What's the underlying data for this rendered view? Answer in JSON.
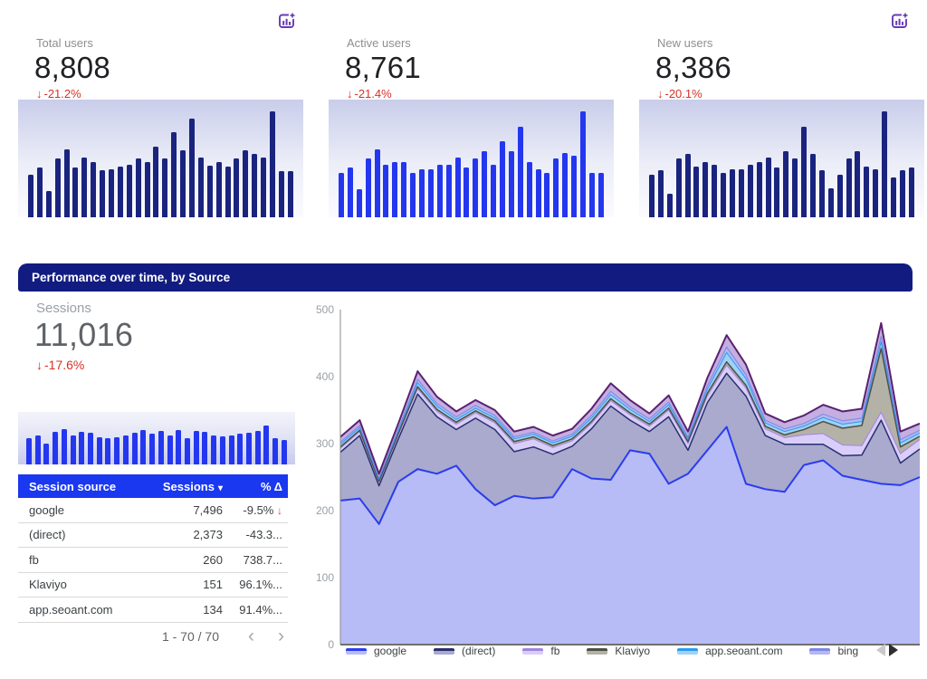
{
  "kpi_cards": [
    {
      "label": "Total users",
      "value": "8,808",
      "delta_arrow": "↓",
      "delta": "-21.2%",
      "spark_id": "total-users-spark"
    },
    {
      "label": "Active users",
      "value": "8,761",
      "delta_arrow": "↓",
      "delta": "-21.4%",
      "spark_id": "active-users-spark"
    },
    {
      "label": "New users",
      "value": "8,386",
      "delta_arrow": "↓",
      "delta": "-20.1%",
      "spark_id": "new-users-spark"
    }
  ],
  "section": {
    "title": "Performance over time, by Source",
    "header_bg": "#121c80",
    "scorecard": {
      "label": "Sessions",
      "value": "11,016",
      "delta_arrow": "↓",
      "delta": "-17.6%"
    },
    "table": {
      "columns": [
        "Session source",
        "Sessions",
        "% Δ"
      ],
      "sort_icon": "▾",
      "header_bg": "#1a38f0",
      "rows": [
        {
          "source": "google",
          "sessions": "7,496",
          "delta": "-9.5%",
          "delta_arrow": "↓"
        },
        {
          "source": "(direct)",
          "sessions": "2,373",
          "delta": "-43.3..."
        },
        {
          "source": "fb",
          "sessions": "260",
          "delta": "738.7..."
        },
        {
          "source": "Klaviyo",
          "sessions": "151",
          "delta": "96.1%..."
        },
        {
          "source": "app.seoant.com",
          "sessions": "134",
          "delta": "91.4%..."
        }
      ],
      "pagination": {
        "label": "1 - 70 / 70",
        "prev_icon": "‹",
        "next_icon": "›"
      }
    }
  },
  "colors": {
    "accent_navy": "#1a247e",
    "accent_blue": "#2437ef",
    "negative_red": "#d93025",
    "icon_purple": "#673ab7"
  },
  "chart_data": [
    {
      "id": "total-users-spark",
      "type": "bar",
      "color": "#1a247e",
      "values": [
        0.36,
        0.42,
        0.22,
        0.5,
        0.58,
        0.42,
        0.51,
        0.47,
        0.4,
        0.41,
        0.43,
        0.45,
        0.5,
        0.47,
        0.6,
        0.5,
        0.72,
        0.57,
        0.84,
        0.51,
        0.44,
        0.47,
        0.43,
        0.5,
        0.57,
        0.54,
        0.51,
        0.9,
        0.39,
        0.39
      ]
    },
    {
      "id": "active-users-spark",
      "type": "bar",
      "color": "#2437ef",
      "values": [
        0.38,
        0.42,
        0.24,
        0.5,
        0.58,
        0.45,
        0.47,
        0.47,
        0.38,
        0.41,
        0.41,
        0.45,
        0.45,
        0.51,
        0.42,
        0.5,
        0.56,
        0.45,
        0.65,
        0.56,
        0.77,
        0.47,
        0.41,
        0.38,
        0.5,
        0.55,
        0.52,
        0.9,
        0.38,
        0.38
      ]
    },
    {
      "id": "new-users-spark",
      "type": "bar",
      "color": "#1a247e",
      "values": [
        0.36,
        0.4,
        0.2,
        0.5,
        0.54,
        0.43,
        0.47,
        0.45,
        0.38,
        0.41,
        0.41,
        0.45,
        0.47,
        0.51,
        0.42,
        0.56,
        0.5,
        0.77,
        0.54,
        0.4,
        0.25,
        0.36,
        0.5,
        0.56,
        0.43,
        0.41,
        0.9,
        0.34,
        0.4,
        0.42
      ]
    },
    {
      "id": "sessions-spark",
      "type": "bar",
      "color": "#2437ef",
      "values": [
        0.5,
        0.55,
        0.4,
        0.62,
        0.68,
        0.56,
        0.62,
        0.6,
        0.52,
        0.5,
        0.52,
        0.56,
        0.6,
        0.65,
        0.58,
        0.63,
        0.56,
        0.65,
        0.5,
        0.63,
        0.62,
        0.56,
        0.54,
        0.56,
        0.58,
        0.6,
        0.63,
        0.74,
        0.5,
        0.47
      ]
    },
    {
      "id": "sessions-by-source",
      "type": "area",
      "stacked": true,
      "title": "Performance over time, by Source",
      "xlabel": "",
      "ylabel": "",
      "ylim": [
        0,
        500
      ],
      "yticks": [
        0,
        100,
        200,
        300,
        400,
        500
      ],
      "grid": false,
      "legend_position": "bottom",
      "series": [
        {
          "name": "google",
          "fill": "#b7bcf7",
          "stroke": "#2b3cf0",
          "stroke_width": 2,
          "values": [
            215,
            218,
            180,
            243,
            262,
            255,
            267,
            232,
            208,
            222,
            218,
            220,
            262,
            248,
            246,
            290,
            285,
            240,
            255,
            290,
            325,
            240,
            232,
            228,
            268,
            275,
            252,
            246,
            240,
            238,
            250
          ]
        },
        {
          "name": "(direct)",
          "fill": "#a9aacd",
          "stroke": "#28306f",
          "stroke_width": 1.5,
          "values": [
            72,
            94,
            57,
            64,
            112,
            85,
            54,
            106,
            113,
            66,
            77,
            64,
            34,
            74,
            110,
            45,
            33,
            100,
            35,
            71,
            80,
            131,
            80,
            71,
            31,
            24,
            30,
            37,
            95,
            33,
            42
          ]
        },
        {
          "name": "fb",
          "fill": "#d9cdf9",
          "stroke": "#a184e0",
          "stroke_width": 1,
          "values": [
            6,
            6,
            5,
            6,
            8,
            8,
            8,
            8,
            10,
            12,
            12,
            10,
            8,
            8,
            8,
            8,
            8,
            10,
            10,
            10,
            12,
            12,
            10,
            10,
            14,
            16,
            16,
            14,
            12,
            14,
            14
          ]
        },
        {
          "name": "Klaviyo",
          "fill": "#b4b2a6",
          "stroke": "#4d5045",
          "stroke_width": 1.5,
          "values": [
            2,
            2,
            2,
            2,
            3,
            3,
            3,
            3,
            3,
            3,
            3,
            3,
            3,
            3,
            3,
            3,
            3,
            3,
            3,
            4,
            5,
            4,
            4,
            4,
            8,
            18,
            25,
            30,
            95,
            10,
            5
          ]
        },
        {
          "name": "app.seoant.com",
          "fill": "#9ed2f8",
          "stroke": "#2e9bed",
          "stroke_width": 1,
          "values": [
            4,
            4,
            3,
            4,
            6,
            5,
            4,
            4,
            4,
            4,
            4,
            4,
            4,
            5,
            6,
            5,
            4,
            5,
            4,
            6,
            14,
            10,
            5,
            5,
            5,
            6,
            6,
            6,
            10,
            6,
            5
          ]
        },
        {
          "name": "bing",
          "fill": "#b3b8f0",
          "stroke": "#7b86e8",
          "stroke_width": 1,
          "values": [
            3,
            3,
            2,
            3,
            5,
            4,
            4,
            4,
            4,
            3,
            3,
            3,
            3,
            4,
            5,
            4,
            4,
            4,
            3,
            5,
            8,
            6,
            4,
            4,
            4,
            5,
            5,
            5,
            8,
            5,
            4
          ]
        },
        {
          "name": "others",
          "legend": false,
          "fill": "#c5aee0",
          "stroke": "#5a2170",
          "stroke_width": 2,
          "values": [
            8,
            8,
            6,
            8,
            12,
            10,
            8,
            8,
            8,
            8,
            8,
            8,
            8,
            10,
            12,
            10,
            8,
            10,
            8,
            12,
            18,
            15,
            10,
            10,
            12,
            14,
            14,
            14,
            20,
            12,
            10
          ]
        }
      ]
    }
  ]
}
